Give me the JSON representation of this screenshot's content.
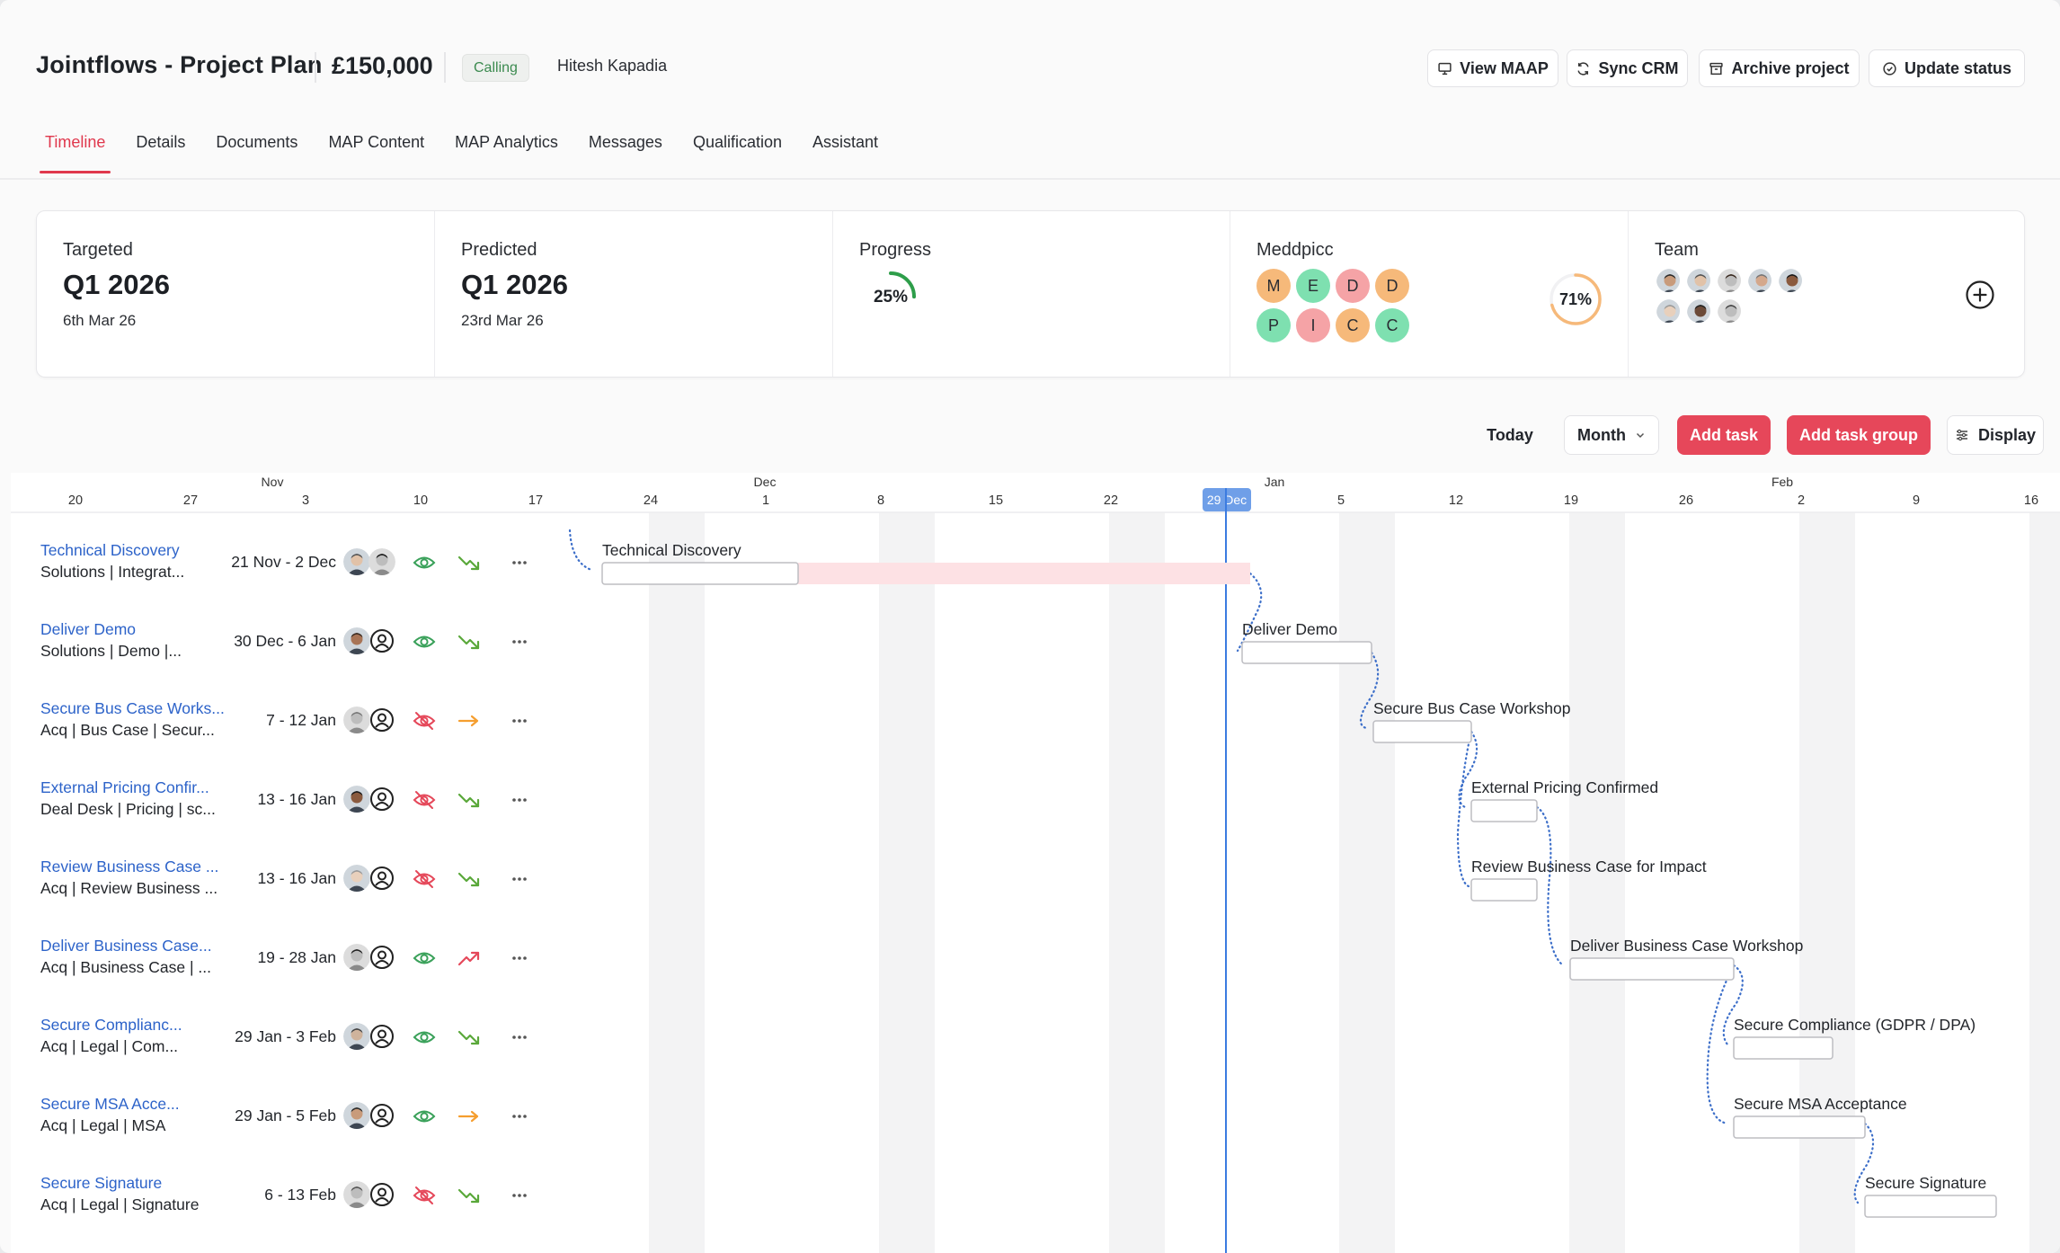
{
  "header": {
    "title": "Jointflows - Project Plan",
    "amount": "£150,000",
    "stage_badge": "Calling",
    "owner": "Hitesh Kapadia",
    "buttons": [
      "View MAAP",
      "Sync CRM",
      "Archive project",
      "Update status"
    ]
  },
  "tabs": [
    "Timeline",
    "Details",
    "Documents",
    "MAP Content",
    "MAP Analytics",
    "Messages",
    "Qualification",
    "Assistant"
  ],
  "active_tab": "Timeline",
  "stats": {
    "targeted": {
      "label": "Targeted",
      "value": "Q1 2026",
      "date": "6th Mar 26"
    },
    "predicted": {
      "label": "Predicted",
      "value": "Q1 2026",
      "date": "23rd Mar 26"
    },
    "progress": {
      "label": "Progress",
      "text": "25%",
      "fraction": 0.25
    },
    "meddpicc": {
      "label": "Meddpicc",
      "score_text": "71%",
      "fraction": 0.71,
      "letters": [
        {
          "letter": "M",
          "color": "#f6b97a"
        },
        {
          "letter": "E",
          "color": "#7ee0b0"
        },
        {
          "letter": "D",
          "color": "#f5a3a6"
        },
        {
          "letter": "D",
          "color": "#f6b97a"
        },
        {
          "letter": "P",
          "color": "#7ee0b0"
        },
        {
          "letter": "I",
          "color": "#f5a3a6"
        },
        {
          "letter": "C",
          "color": "#f6b97a"
        },
        {
          "letter": "C",
          "color": "#7ee0b0"
        }
      ]
    },
    "team": {
      "label": "Team",
      "member_count": 8
    }
  },
  "toolbar": {
    "today": "Today",
    "view": "Month",
    "add_task": "Add task",
    "add_task_group": "Add task group",
    "display": "Display"
  },
  "timeline": {
    "months": [
      "Nov",
      "Dec",
      "Jan",
      "Feb"
    ],
    "days": [
      "20",
      "27",
      "3",
      "10",
      "17",
      "24",
      "1",
      "8",
      "15",
      "22",
      "29 Dec",
      "5",
      "12",
      "19",
      "26",
      "2",
      "9",
      "16"
    ],
    "today_label": "29 Dec"
  },
  "tasks": [
    {
      "name": "Technical Discovery",
      "sub": "Solutions | Integrat...",
      "dates": "21 Nov - 2 Dec",
      "visible": true,
      "trend": "down"
    },
    {
      "name": "Deliver Demo",
      "sub": "Solutions | Demo |...",
      "dates": "30 Dec - 6 Jan",
      "visible": true,
      "trend": "down"
    },
    {
      "name": "Secure Bus Case Works...",
      "sub": "Acq | Bus Case | Secur...",
      "dates": "7 - 12 Jan",
      "visible": false,
      "trend": "flat"
    },
    {
      "name": "External Pricing Confir...",
      "sub": "Deal Desk | Pricing | sc...",
      "dates": "13 - 16 Jan",
      "visible": false,
      "trend": "down"
    },
    {
      "name": "Review Business Case ...",
      "sub": "Acq | Review Business ...",
      "dates": "13 - 16 Jan",
      "visible": false,
      "trend": "down"
    },
    {
      "name": "Deliver Business Case...",
      "sub": "Acq | Business Case | ...",
      "dates": "19 - 28 Jan",
      "visible": true,
      "trend": "up"
    },
    {
      "name": "Secure Complianc...",
      "sub": "Acq | Legal | Com...",
      "dates": "29 Jan - 3 Feb",
      "visible": true,
      "trend": "down"
    },
    {
      "name": "Secure MSA Acce...",
      "sub": "Acq | Legal | MSA",
      "dates": "29 Jan - 5 Feb",
      "visible": true,
      "trend": "flat"
    },
    {
      "name": "Secure Signature",
      "sub": "Acq | Legal | Signature",
      "dates": "6 - 13 Feb",
      "visible": false,
      "trend": "down"
    }
  ],
  "bars": [
    "Technical Discovery",
    "Deliver Demo",
    "Secure Bus Case Workshop",
    "External Pricing Confirmed",
    "Review Business Case for Impact",
    "Deliver Business Case Workshop",
    "Secure Compliance (GDPR / DPA)",
    "Secure MSA Acceptance",
    "Secure Signature"
  ],
  "colors": {
    "accent": "#e0384d",
    "link": "#2d63c9",
    "today_line": "#3b7be0",
    "overdue": "#fde1e4",
    "eye_green": "#3aa15a",
    "eye_red": "#e5485a",
    "trend_green": "#5aa83a",
    "trend_orange": "#f59e2f",
    "trend_red": "#e5485a"
  }
}
